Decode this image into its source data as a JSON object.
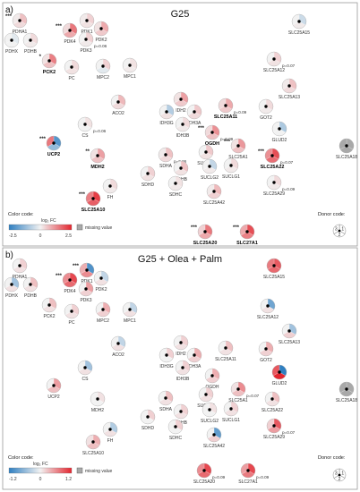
{
  "colors": {
    "low": "#2f7fc1",
    "mid": "#f2f2f2",
    "high": "#e3262f",
    "missing": "#a9a9a9"
  },
  "legend": {
    "color_code": "Color code:",
    "log2fc": "log₂ FC",
    "missing": "missing value",
    "donor_code": "Donor code:",
    "donor_digits": [
      "1",
      "2",
      "3"
    ]
  },
  "panels": [
    {
      "letter": "a)",
      "title": "G25",
      "scale": [
        -2.5,
        0,
        2.5
      ],
      "nodes": [
        {
          "label": "PDHA1",
          "bold": false,
          "values": [
            0.6,
            0.3,
            0.1
          ],
          "sig": "***",
          "p": ""
        },
        {
          "label": "PDHX",
          "bold": false,
          "values": [
            -0.2,
            0.0,
            0.0
          ],
          "sig": "",
          "p": ""
        },
        {
          "label": "PDHB",
          "bold": false,
          "values": [
            0.3,
            0.1,
            0.0
          ],
          "sig": "",
          "p": ""
        },
        {
          "label": "PCK2",
          "bold": true,
          "values": [
            1.4,
            0.6,
            0.2
          ],
          "sig": "*",
          "p": ""
        },
        {
          "label": "PDK4",
          "bold": false,
          "values": [
            1.5,
            0.9,
            0.3
          ],
          "sig": "***",
          "p": ""
        },
        {
          "label": "PDK1",
          "bold": false,
          "values": [
            0.4,
            0.2,
            0.1
          ],
          "sig": "",
          "p": ""
        },
        {
          "label": "PDK2",
          "bold": false,
          "values": [
            0.9,
            0.5,
            0.2
          ],
          "sig": "",
          "p": ""
        },
        {
          "label": "PDK3",
          "bold": false,
          "values": [
            0.4,
            0.1,
            0.0
          ],
          "sig": "",
          "p": "p=0.06"
        },
        {
          "label": "PC",
          "bold": false,
          "values": [
            0.3,
            0.2,
            0.0
          ],
          "sig": "",
          "p": ""
        },
        {
          "label": "MPC2",
          "bold": false,
          "values": [
            0.4,
            -0.2,
            0.0
          ],
          "sig": "",
          "p": ""
        },
        {
          "label": "MPC1",
          "bold": false,
          "values": [
            0.2,
            0.1,
            0.0
          ],
          "sig": "",
          "p": ""
        },
        {
          "label": "SLC25A15",
          "bold": false,
          "values": [
            -0.5,
            0.1,
            0.0
          ],
          "sig": "",
          "p": ""
        },
        {
          "label": "SLC25A12",
          "bold": false,
          "values": [
            0.4,
            0.2,
            0.0
          ],
          "sig": "",
          "p": "p=0.07"
        },
        {
          "label": "SLC25A13",
          "bold": false,
          "values": [
            0.6,
            0.3,
            0.1
          ],
          "sig": "",
          "p": ""
        },
        {
          "label": "ACO2",
          "bold": false,
          "values": [
            0.7,
            0.3,
            0.0
          ],
          "sig": "",
          "p": ""
        },
        {
          "label": "IDH2",
          "bold": false,
          "values": [
            1.0,
            0.5,
            0.2
          ],
          "sig": "",
          "p": ""
        },
        {
          "label": "IDH3G",
          "bold": false,
          "values": [
            -0.8,
            0.2,
            0.0
          ],
          "sig": "",
          "p": ""
        },
        {
          "label": "IDH3A",
          "bold": false,
          "values": [
            0.5,
            0.3,
            0.0
          ],
          "sig": "",
          "p": ""
        },
        {
          "label": "IDH3B",
          "bold": false,
          "values": [
            0.3,
            0.1,
            0.0
          ],
          "sig": "",
          "p": ""
        },
        {
          "label": "SLC25A11",
          "bold": true,
          "values": [
            0.9,
            0.5,
            0.3
          ],
          "sig": "",
          "p": "p=0.09"
        },
        {
          "label": "GOT2",
          "bold": false,
          "values": [
            0.3,
            0.1,
            0.0
          ],
          "sig": "",
          "p": ""
        },
        {
          "label": "CS",
          "bold": false,
          "values": [
            0.2,
            0.0,
            0.0
          ],
          "sig": "",
          "p": "p=0.06"
        },
        {
          "label": "OGDH",
          "bold": true,
          "values": [
            1.2,
            0.6,
            0.3
          ],
          "sig": "***",
          "p": "p=0.09"
        },
        {
          "label": "UCP2",
          "bold": true,
          "values": [
            -2.0,
            -1.2,
            1.5
          ],
          "sig": "***",
          "p": ""
        },
        {
          "label": "MDH2",
          "bold": true,
          "values": [
            1.0,
            0.6,
            0.2
          ],
          "sig": "**",
          "p": ""
        },
        {
          "label": "SDHA",
          "bold": false,
          "values": [
            0.6,
            0.3,
            0.1
          ],
          "sig": "",
          "p": "p=0.06"
        },
        {
          "label": "SUCLA2",
          "bold": false,
          "values": [
            0.5,
            0.2,
            0.0
          ],
          "sig": "",
          "p": ""
        },
        {
          "label": "SLC25A1",
          "bold": false,
          "values": [
            1.1,
            0.6,
            0.2
          ],
          "sig": "***",
          "p": ""
        },
        {
          "label": "GLUD2",
          "bold": false,
          "values": [
            -0.9,
            0.0,
            0.0
          ],
          "sig": "",
          "p": ""
        },
        {
          "label": "SLC25A18",
          "bold": false,
          "values": [
            null,
            null,
            null
          ],
          "sig": "",
          "p": ""
        },
        {
          "label": "SLC25A22",
          "bold": true,
          "values": [
            2.0,
            1.6,
            1.2
          ],
          "sig": "***",
          "p": "p=0.07"
        },
        {
          "label": "SDHD",
          "bold": false,
          "values": [
            0.4,
            0.2,
            0.0
          ],
          "sig": "",
          "p": ""
        },
        {
          "label": "SDHB",
          "bold": false,
          "values": [
            0.6,
            0.2,
            0.0
          ],
          "sig": "",
          "p": ""
        },
        {
          "label": "SUCLG2",
          "bold": false,
          "values": [
            -0.6,
            0.1,
            0.0
          ],
          "sig": "",
          "p": ""
        },
        {
          "label": "SUCLG1",
          "bold": false,
          "values": [
            0.3,
            0.1,
            0.0
          ],
          "sig": "",
          "p": ""
        },
        {
          "label": "SLC25A29",
          "bold": false,
          "values": [
            0.3,
            0.1,
            0.0
          ],
          "sig": "",
          "p": "p=0.09"
        },
        {
          "label": "FH",
          "bold": false,
          "values": [
            0.3,
            0.1,
            0.0
          ],
          "sig": "",
          "p": ""
        },
        {
          "label": "SDHC",
          "bold": false,
          "values": [
            0.2,
            0.1,
            0.0
          ],
          "sig": "",
          "p": ""
        },
        {
          "label": "SLC25A42",
          "bold": false,
          "values": [
            0.7,
            0.4,
            0.1
          ],
          "sig": "",
          "p": ""
        },
        {
          "label": "SLC25A10",
          "bold": true,
          "values": [
            2.2,
            1.8,
            1.4
          ],
          "sig": "***",
          "p": ""
        },
        {
          "label": "SLC25A20",
          "bold": true,
          "values": [
            1.5,
            0.9,
            0.4
          ],
          "sig": "***",
          "p": ""
        },
        {
          "label": "SLC27A1",
          "bold": true,
          "values": [
            2.0,
            1.4,
            0.9
          ],
          "sig": "***",
          "p": ""
        }
      ]
    },
    {
      "letter": "b)",
      "title": "G25 + Olea + Palm",
      "scale": [
        -1.2,
        0,
        1.2
      ],
      "nodes": [
        {
          "label": "PDHA1",
          "bold": false,
          "values": [
            0.2,
            0.1,
            0.0
          ],
          "sig": "",
          "p": ""
        },
        {
          "label": "PDHX",
          "bold": false,
          "values": [
            -0.5,
            0.1,
            0.0
          ],
          "sig": "",
          "p": ""
        },
        {
          "label": "PDHB",
          "bold": false,
          "values": [
            0.3,
            0.1,
            0.0
          ],
          "sig": "",
          "p": ""
        },
        {
          "label": "PCK2",
          "bold": false,
          "values": [
            0.3,
            0.1,
            0.0
          ],
          "sig": "",
          "p": ""
        },
        {
          "label": "PDK4",
          "bold": false,
          "values": [
            1.0,
            0.8,
            0.6
          ],
          "sig": "***",
          "p": ""
        },
        {
          "label": "PDK1",
          "bold": false,
          "values": [
            -1.0,
            0.6,
            0.4
          ],
          "sig": "***",
          "p": ""
        },
        {
          "label": "PDK2",
          "bold": false,
          "values": [
            -0.3,
            0.1,
            0.0
          ],
          "sig": "",
          "p": ""
        },
        {
          "label": "PDK3",
          "bold": false,
          "values": [
            0.5,
            0.2,
            0.0
          ],
          "sig": "",
          "p": ""
        },
        {
          "label": "PC",
          "bold": false,
          "values": [
            0.2,
            0.1,
            0.0
          ],
          "sig": "",
          "p": ""
        },
        {
          "label": "MPC2",
          "bold": false,
          "values": [
            0.4,
            0.2,
            0.0
          ],
          "sig": "",
          "p": ""
        },
        {
          "label": "MPC1",
          "bold": false,
          "values": [
            -0.3,
            0.1,
            0.0
          ],
          "sig": "",
          "p": ""
        },
        {
          "label": "SLC25A15",
          "bold": false,
          "values": [
            0.9,
            0.8,
            0.7
          ],
          "sig": "",
          "p": ""
        },
        {
          "label": "SLC25A12",
          "bold": false,
          "values": [
            -0.8,
            0.1,
            0.0
          ],
          "sig": "",
          "p": ""
        },
        {
          "label": "SLC25A13",
          "bold": false,
          "values": [
            -0.5,
            0.2,
            0.0
          ],
          "sig": "",
          "p": ""
        },
        {
          "label": "ACO2",
          "bold": false,
          "values": [
            -0.3,
            0.1,
            0.0
          ],
          "sig": "",
          "p": ""
        },
        {
          "label": "IDH2",
          "bold": false,
          "values": [
            0.2,
            0.1,
            0.0
          ],
          "sig": "",
          "p": ""
        },
        {
          "label": "IDH3G",
          "bold": false,
          "values": [
            0.2,
            0.0,
            0.0
          ],
          "sig": "",
          "p": ""
        },
        {
          "label": "IDH3A",
          "bold": false,
          "values": [
            0.4,
            0.2,
            0.0
          ],
          "sig": "",
          "p": ""
        },
        {
          "label": "IDH3B",
          "bold": false,
          "values": [
            0.2,
            0.1,
            0.0
          ],
          "sig": "",
          "p": ""
        },
        {
          "label": "SLC25A11",
          "bold": false,
          "values": [
            0.3,
            0.1,
            0.0
          ],
          "sig": "",
          "p": ""
        },
        {
          "label": "GOT2",
          "bold": false,
          "values": [
            0.4,
            0.2,
            0.0
          ],
          "sig": "",
          "p": ""
        },
        {
          "label": "CS",
          "bold": false,
          "values": [
            -0.5,
            0.1,
            0.0
          ],
          "sig": "",
          "p": ""
        },
        {
          "label": "OGDH",
          "bold": false,
          "values": [
            0.4,
            0.2,
            0.0
          ],
          "sig": "",
          "p": ""
        },
        {
          "label": "UCP2",
          "bold": false,
          "values": [
            0.5,
            0.3,
            0.0
          ],
          "sig": "",
          "p": ""
        },
        {
          "label": "MDH2",
          "bold": false,
          "values": [
            0.1,
            0.0,
            0.0
          ],
          "sig": "",
          "p": ""
        },
        {
          "label": "SDHA",
          "bold": false,
          "values": [
            0.3,
            0.1,
            0.0
          ],
          "sig": "",
          "p": ""
        },
        {
          "label": "SUCLA2",
          "bold": false,
          "values": [
            0.2,
            0.1,
            0.0
          ],
          "sig": "",
          "p": ""
        },
        {
          "label": "SLC25A1",
          "bold": false,
          "values": [
            0.6,
            0.3,
            0.1
          ],
          "sig": "",
          "p": "p=0.07"
        },
        {
          "label": "GLUD2",
          "bold": false,
          "values": [
            -1.2,
            1.2,
            0.9
          ],
          "sig": "",
          "p": ""
        },
        {
          "label": "SLC25A18",
          "bold": false,
          "values": [
            null,
            null,
            null
          ],
          "sig": "",
          "p": ""
        },
        {
          "label": "SLC25A22",
          "bold": false,
          "values": [
            0.3,
            0.1,
            0.0
          ],
          "sig": "",
          "p": ""
        },
        {
          "label": "SDHD",
          "bold": false,
          "values": [
            0.2,
            0.0,
            0.0
          ],
          "sig": "",
          "p": ""
        },
        {
          "label": "SDHB",
          "bold": false,
          "values": [
            0.2,
            0.1,
            0.0
          ],
          "sig": "",
          "p": ""
        },
        {
          "label": "SUCLG2",
          "bold": false,
          "values": [
            0.1,
            0.0,
            0.0
          ],
          "sig": "",
          "p": ""
        },
        {
          "label": "SUCLG1",
          "bold": false,
          "values": [
            0.2,
            0.1,
            0.0
          ],
          "sig": "",
          "p": ""
        },
        {
          "label": "SLC25A29",
          "bold": false,
          "values": [
            0.9,
            0.5,
            0.2
          ],
          "sig": "",
          "p": "p=0.07"
        },
        {
          "label": "FH",
          "bold": false,
          "values": [
            -0.4,
            0.1,
            0.0
          ],
          "sig": "",
          "p": ""
        },
        {
          "label": "SDHC",
          "bold": false,
          "values": [
            0.2,
            0.0,
            0.0
          ],
          "sig": "",
          "p": ""
        },
        {
          "label": "SLC25A42",
          "bold": false,
          "values": [
            -0.9,
            0.2,
            0.0
          ],
          "sig": "",
          "p": ""
        },
        {
          "label": "SLC25A10",
          "bold": false,
          "values": [
            0.4,
            0.3,
            0.1
          ],
          "sig": "",
          "p": ""
        },
        {
          "label": "SLC25A20",
          "bold": false,
          "values": [
            1.0,
            0.8,
            0.6
          ],
          "sig": "",
          "p": "p=0.09"
        },
        {
          "label": "SLC27A1",
          "bold": false,
          "values": [
            1.0,
            0.7,
            0.5
          ],
          "sig": "",
          "p": "p=0.09"
        }
      ]
    }
  ]
}
